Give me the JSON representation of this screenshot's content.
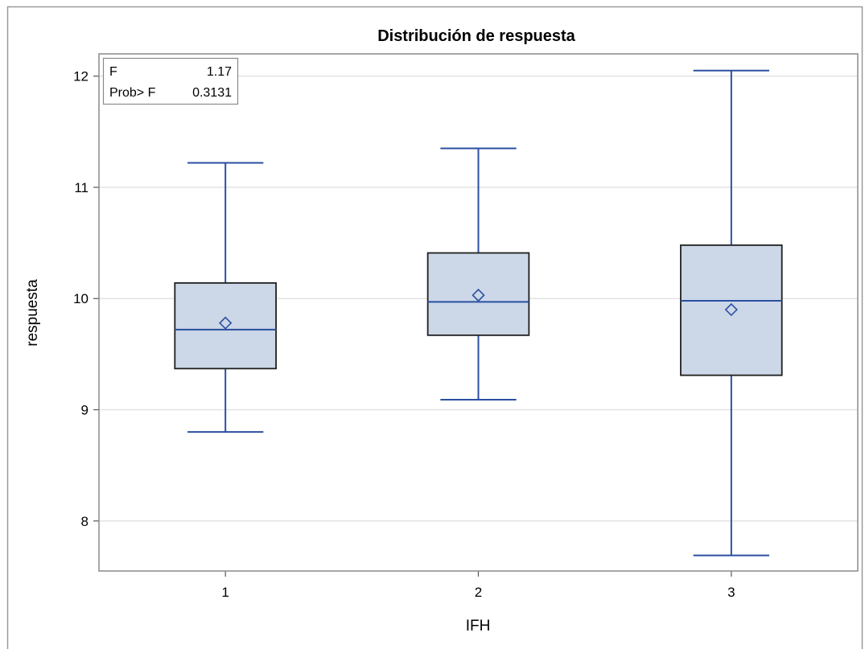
{
  "chart_data": {
    "type": "boxplot",
    "title": "Distribución de respuesta",
    "xlabel": "IFH",
    "ylabel": "respuesta",
    "categories": [
      "1",
      "2",
      "3"
    ],
    "ylim": [
      7.55,
      12.2
    ],
    "yticks": [
      8,
      9,
      10,
      11,
      12
    ],
    "grid": true,
    "boxes": [
      {
        "category": "1",
        "min": 8.8,
        "q1": 9.37,
        "median": 9.72,
        "q3": 10.14,
        "max": 11.22,
        "mean": 9.78
      },
      {
        "category": "2",
        "min": 9.09,
        "q1": 9.67,
        "median": 9.97,
        "q3": 10.41,
        "max": 11.35,
        "mean": 10.03
      },
      {
        "category": "3",
        "min": 7.69,
        "q1": 9.31,
        "median": 9.98,
        "q3": 10.48,
        "max": 12.05,
        "mean": 9.9
      }
    ],
    "stats_inset": {
      "rows": [
        {
          "label": "F",
          "value": "1.17"
        },
        {
          "label": "Prob> F",
          "value": "0.3131"
        }
      ],
      "placement": "top-left"
    },
    "colors": {
      "box_fill": "#ccd7e7",
      "box_outline": "#1f1f1f",
      "whisker": "#2a4fa2",
      "median": "#2a4fa2",
      "mean_marker": "#2a4fa2",
      "grid": "#e3e3e3",
      "frame": "#8a8a8a"
    }
  }
}
